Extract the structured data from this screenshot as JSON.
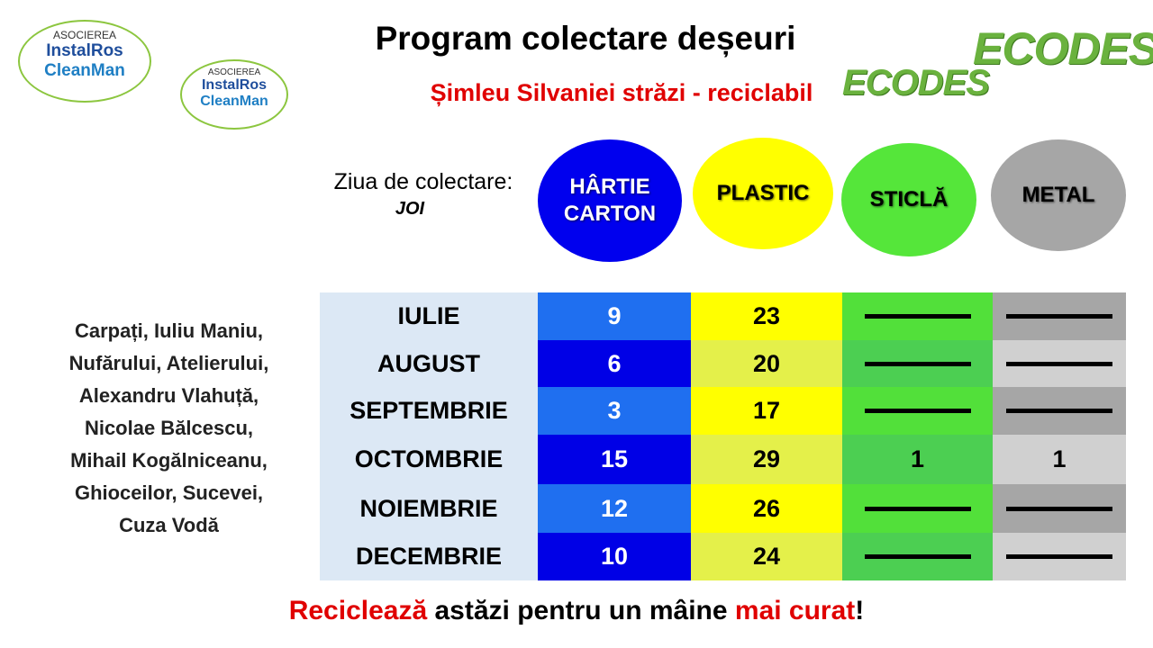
{
  "logos": {
    "association": "ASOCIEREA",
    "instalros": "InstalRos",
    "cleanman": "CleanMan",
    "ecodes": "ECODES"
  },
  "header": {
    "title": "Program colectare deșeuri",
    "subtitle": "Șimleu Silvaniei străzi - reciclabil"
  },
  "collection_day": {
    "label": "Ziua de colectare:",
    "day": "JOI"
  },
  "waste_types": [
    [
      "HÂRTIE",
      "CARTON"
    ],
    [
      "PLASTIC"
    ],
    [
      "STICLĂ"
    ],
    [
      "METAL"
    ]
  ],
  "streets": [
    "Carpați, Iuliu Maniu,",
    "Nufărului, Atelierului,",
    "Alexandru Vlahuță,",
    "Nicolae Bălcescu,",
    "Mihail Kogălniceanu,",
    "Ghioceilor, Sucevei,",
    "Cuza Vodă"
  ],
  "table": {
    "rows": [
      [
        "IULIE",
        9,
        23,
        null,
        null
      ],
      [
        "AUGUST",
        6,
        20,
        null,
        null
      ],
      [
        "SEPTEMBRIE",
        3,
        17,
        null,
        null
      ],
      [
        "OCTOMBRIE",
        15,
        29,
        1,
        1
      ],
      [
        "NOIEMBRIE",
        12,
        26,
        null,
        null
      ],
      [
        "DECEMBRIE",
        10,
        24,
        null,
        null
      ]
    ]
  },
  "footer": [
    "Reciclează",
    " astăzi pentru un mâine ",
    "mai curat",
    "!"
  ]
}
